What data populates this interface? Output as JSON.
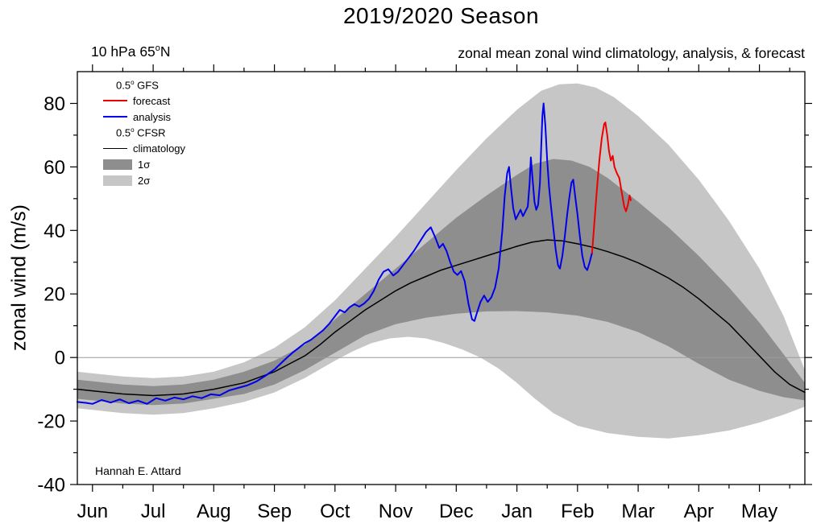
{
  "title": "2019/2020 Season",
  "header": {
    "left": {
      "pre": "10 hPa 65",
      "sup": "o",
      "post": "N"
    },
    "right": "zonal mean zonal wind climatology, analysis, & forecast"
  },
  "y_axis_label": "zonal wind (m/s)",
  "credit": "Hannah E. Attard",
  "legend": {
    "gfs": {
      "pre": "0.5",
      "sup": "o",
      "post": "  GFS"
    },
    "forecast_label": "forecast",
    "analysis_label": "analysis",
    "cfsr": {
      "pre": "0.5",
      "sup": "o",
      "post": " CFSR"
    },
    "climatology_label": "climatology",
    "sigma1_label": "1σ",
    "sigma2_label": "2σ"
  },
  "chart_data": {
    "type": "line",
    "title": "2019/2020 Season",
    "xlabel": "",
    "ylabel": "zonal wind (m/s)",
    "xlim": [
      -0.25,
      11.75
    ],
    "ylim": [
      -40,
      90
    ],
    "grid": false,
    "zero_line": true,
    "zero_line_color": "#9a9a9a",
    "x_ticks": {
      "positions": [
        0,
        1,
        2,
        3,
        4,
        5,
        6,
        7,
        8,
        9,
        10,
        11
      ],
      "labels": [
        "Jun",
        "Jul",
        "Aug",
        "Sep",
        "Oct",
        "Nov",
        "Dec",
        "Jan",
        "Feb",
        "Mar",
        "Apr",
        "May"
      ]
    },
    "y_ticks": [
      -40,
      -20,
      0,
      20,
      40,
      60,
      80
    ],
    "series": [
      {
        "name": "sigma2_band",
        "kind": "band",
        "label": "2σ",
        "color": "#c6c6c6",
        "upper": [
          [
            -0.25,
            -4.5
          ],
          [
            0,
            -5
          ],
          [
            0.5,
            -6
          ],
          [
            1,
            -6.5
          ],
          [
            1.5,
            -6
          ],
          [
            2,
            -4.5
          ],
          [
            2.5,
            -1.5
          ],
          [
            3,
            3
          ],
          [
            3.5,
            9.5
          ],
          [
            4,
            18
          ],
          [
            4.5,
            28
          ],
          [
            5,
            38
          ],
          [
            5.5,
            48.5
          ],
          [
            6,
            59
          ],
          [
            6.5,
            69
          ],
          [
            7,
            78
          ],
          [
            7.4,
            84
          ],
          [
            7.7,
            86
          ],
          [
            8,
            86.3
          ],
          [
            8.3,
            85
          ],
          [
            8.6,
            82
          ],
          [
            9,
            76
          ],
          [
            9.5,
            67
          ],
          [
            10,
            56
          ],
          [
            10.5,
            43
          ],
          [
            11,
            28
          ],
          [
            11.4,
            13
          ],
          [
            11.75,
            -4
          ]
        ],
        "lower": [
          [
            -0.25,
            -16
          ],
          [
            0,
            -16.5
          ],
          [
            0.5,
            -17.5
          ],
          [
            1,
            -18
          ],
          [
            1.5,
            -17.5
          ],
          [
            2,
            -16
          ],
          [
            2.5,
            -14
          ],
          [
            3,
            -11
          ],
          [
            3.5,
            -6.5
          ],
          [
            4,
            -1
          ],
          [
            4.3,
            2
          ],
          [
            4.6,
            4.5
          ],
          [
            4.9,
            6
          ],
          [
            5.2,
            6.5
          ],
          [
            5.5,
            6
          ],
          [
            5.8,
            4.5
          ],
          [
            6.1,
            2.5
          ],
          [
            6.4,
            0
          ],
          [
            6.7,
            -3.5
          ],
          [
            7,
            -8
          ],
          [
            7.3,
            -13
          ],
          [
            7.6,
            -17.5
          ],
          [
            8,
            -21.5
          ],
          [
            8.5,
            -23.8
          ],
          [
            9,
            -25
          ],
          [
            9.5,
            -25.5
          ],
          [
            10,
            -24.5
          ],
          [
            10.5,
            -23
          ],
          [
            11,
            -20.5
          ],
          [
            11.4,
            -18
          ],
          [
            11.75,
            -15.5
          ]
        ]
      },
      {
        "name": "sigma1_band",
        "kind": "band",
        "label": "1σ",
        "color": "#8e8e8e",
        "upper": [
          [
            -0.25,
            -7
          ],
          [
            0,
            -7.5
          ],
          [
            0.5,
            -8.5
          ],
          [
            1,
            -9
          ],
          [
            1.5,
            -8.5
          ],
          [
            2,
            -7
          ],
          [
            2.5,
            -4.5
          ],
          [
            3,
            -1
          ],
          [
            3.5,
            4
          ],
          [
            4,
            12
          ],
          [
            4.5,
            20
          ],
          [
            5,
            28
          ],
          [
            5.5,
            36
          ],
          [
            6,
            44
          ],
          [
            6.5,
            51
          ],
          [
            7,
            57.5
          ],
          [
            7.3,
            61
          ],
          [
            7.6,
            62.5
          ],
          [
            7.9,
            62
          ],
          [
            8.2,
            60
          ],
          [
            8.5,
            56.5
          ],
          [
            9,
            49
          ],
          [
            9.5,
            41
          ],
          [
            10,
            32
          ],
          [
            10.5,
            22
          ],
          [
            11,
            11
          ],
          [
            11.4,
            1
          ],
          [
            11.75,
            -8
          ]
        ],
        "lower": [
          [
            -0.25,
            -13
          ],
          [
            0,
            -13.5
          ],
          [
            0.5,
            -14.5
          ],
          [
            1,
            -15
          ],
          [
            1.5,
            -14.5
          ],
          [
            2,
            -13
          ],
          [
            2.5,
            -11.5
          ],
          [
            3,
            -8.5
          ],
          [
            3.5,
            -4
          ],
          [
            4,
            1.5
          ],
          [
            4.5,
            7
          ],
          [
            5,
            10.5
          ],
          [
            5.5,
            12.5
          ],
          [
            6,
            13.8
          ],
          [
            6.5,
            14.5
          ],
          [
            7,
            14.6
          ],
          [
            7.5,
            14.2
          ],
          [
            8,
            13.2
          ],
          [
            8.5,
            11.2
          ],
          [
            9,
            8
          ],
          [
            9.5,
            3.5
          ],
          [
            10,
            -2
          ],
          [
            10.5,
            -7
          ],
          [
            11,
            -10.5
          ],
          [
            11.4,
            -12.5
          ],
          [
            11.75,
            -13.5
          ]
        ]
      },
      {
        "name": "climatology",
        "kind": "line",
        "label": "climatology",
        "color": "#000000",
        "width": 1.5,
        "points": [
          [
            -0.25,
            -10
          ],
          [
            0,
            -10.5
          ],
          [
            0.5,
            -11.5
          ],
          [
            1,
            -12
          ],
          [
            1.5,
            -11.5
          ],
          [
            2,
            -10
          ],
          [
            2.5,
            -8
          ],
          [
            3,
            -4.5
          ],
          [
            3.25,
            -2
          ],
          [
            3.5,
            0.5
          ],
          [
            3.75,
            4
          ],
          [
            4,
            8
          ],
          [
            4.25,
            11.5
          ],
          [
            4.5,
            15
          ],
          [
            4.75,
            18
          ],
          [
            5,
            21
          ],
          [
            5.25,
            23.5
          ],
          [
            5.5,
            25.5
          ],
          [
            5.75,
            27.5
          ],
          [
            6,
            29
          ],
          [
            6.25,
            30.5
          ],
          [
            6.5,
            32
          ],
          [
            6.75,
            33.5
          ],
          [
            7,
            35
          ],
          [
            7.25,
            36.3
          ],
          [
            7.5,
            37
          ],
          [
            7.75,
            36.7
          ],
          [
            8,
            35.8
          ],
          [
            8.25,
            34.7
          ],
          [
            8.5,
            33.3
          ],
          [
            8.75,
            31.7
          ],
          [
            9,
            29.8
          ],
          [
            9.25,
            27.5
          ],
          [
            9.5,
            25
          ],
          [
            9.75,
            22
          ],
          [
            10,
            18.5
          ],
          [
            10.25,
            14.5
          ],
          [
            10.5,
            10.5
          ],
          [
            10.75,
            5.5
          ],
          [
            11,
            0.5
          ],
          [
            11.25,
            -4.5
          ],
          [
            11.5,
            -8.5
          ],
          [
            11.75,
            -11
          ]
        ]
      },
      {
        "name": "analysis",
        "kind": "line",
        "label": "analysis",
        "color": "#0000ee",
        "width": 2,
        "points": [
          [
            -0.25,
            -14
          ],
          [
            -0.1,
            -14.3
          ],
          [
            0,
            -14.6
          ],
          [
            0.15,
            -13.4
          ],
          [
            0.3,
            -14.2
          ],
          [
            0.45,
            -13.2
          ],
          [
            0.6,
            -14.4
          ],
          [
            0.75,
            -13.6
          ],
          [
            0.9,
            -14.6
          ],
          [
            1.05,
            -12.8
          ],
          [
            1.2,
            -13.6
          ],
          [
            1.35,
            -12.6
          ],
          [
            1.5,
            -13.2
          ],
          [
            1.65,
            -12.2
          ],
          [
            1.8,
            -12.8
          ],
          [
            1.95,
            -11.6
          ],
          [
            2.1,
            -11.9
          ],
          [
            2.25,
            -10.4
          ],
          [
            2.4,
            -9.6
          ],
          [
            2.55,
            -8.8
          ],
          [
            2.7,
            -7.6
          ],
          [
            2.85,
            -5.8
          ],
          [
            3,
            -3.8
          ],
          [
            3.1,
            -2
          ],
          [
            3.2,
            -0.2
          ],
          [
            3.3,
            1.5
          ],
          [
            3.4,
            3
          ],
          [
            3.5,
            4.5
          ],
          [
            3.6,
            5.5
          ],
          [
            3.7,
            7
          ],
          [
            3.8,
            8.5
          ],
          [
            3.9,
            10.5
          ],
          [
            4,
            13
          ],
          [
            4.08,
            15
          ],
          [
            4.16,
            14.2
          ],
          [
            4.24,
            15.8
          ],
          [
            4.32,
            16.8
          ],
          [
            4.4,
            16
          ],
          [
            4.48,
            17
          ],
          [
            4.56,
            18.5
          ],
          [
            4.64,
            21
          ],
          [
            4.72,
            24.5
          ],
          [
            4.8,
            27
          ],
          [
            4.88,
            27.8
          ],
          [
            4.96,
            25.8
          ],
          [
            5.04,
            27
          ],
          [
            5.12,
            29
          ],
          [
            5.2,
            31
          ],
          [
            5.3,
            33.5
          ],
          [
            5.4,
            36.5
          ],
          [
            5.5,
            39.5
          ],
          [
            5.58,
            41
          ],
          [
            5.66,
            37.5
          ],
          [
            5.72,
            34.5
          ],
          [
            5.78,
            35.8
          ],
          [
            5.84,
            33.5
          ],
          [
            5.9,
            30
          ],
          [
            5.96,
            27
          ],
          [
            6.02,
            26
          ],
          [
            6.08,
            27.2
          ],
          [
            6.14,
            24
          ],
          [
            6.2,
            17
          ],
          [
            6.26,
            12
          ],
          [
            6.3,
            11.5
          ],
          [
            6.34,
            14
          ],
          [
            6.4,
            17.5
          ],
          [
            6.46,
            19.5
          ],
          [
            6.52,
            17.5
          ],
          [
            6.58,
            19
          ],
          [
            6.64,
            22
          ],
          [
            6.7,
            28
          ],
          [
            6.76,
            40
          ],
          [
            6.8,
            51
          ],
          [
            6.84,
            58
          ],
          [
            6.87,
            60
          ],
          [
            6.9,
            54
          ],
          [
            6.94,
            47
          ],
          [
            6.98,
            43.5
          ],
          [
            7.02,
            45
          ],
          [
            7.06,
            46.5
          ],
          [
            7.1,
            44.5
          ],
          [
            7.14,
            46
          ],
          [
            7.18,
            47.5
          ],
          [
            7.21,
            55
          ],
          [
            7.23,
            63
          ],
          [
            7.26,
            56
          ],
          [
            7.29,
            49
          ],
          [
            7.32,
            46.5
          ],
          [
            7.35,
            48
          ],
          [
            7.38,
            55
          ],
          [
            7.4,
            66
          ],
          [
            7.42,
            76
          ],
          [
            7.44,
            80
          ],
          [
            7.47,
            73
          ],
          [
            7.5,
            62
          ],
          [
            7.53,
            54
          ],
          [
            7.56,
            48
          ],
          [
            7.6,
            41
          ],
          [
            7.64,
            34
          ],
          [
            7.68,
            29
          ],
          [
            7.71,
            28
          ],
          [
            7.75,
            32
          ],
          [
            7.79,
            38
          ],
          [
            7.83,
            45
          ],
          [
            7.87,
            51
          ],
          [
            7.9,
            55
          ],
          [
            7.93,
            56
          ],
          [
            7.96,
            51
          ],
          [
            8,
            45
          ],
          [
            8.04,
            38
          ],
          [
            8.08,
            32
          ],
          [
            8.12,
            28.5
          ],
          [
            8.16,
            27.5
          ],
          [
            8.2,
            30
          ],
          [
            8.24,
            33
          ]
        ]
      },
      {
        "name": "forecast",
        "kind": "line",
        "label": "forecast",
        "color": "#ee0000",
        "width": 2,
        "points": [
          [
            8.24,
            33
          ],
          [
            8.28,
            43
          ],
          [
            8.32,
            53
          ],
          [
            8.36,
            62
          ],
          [
            8.4,
            69
          ],
          [
            8.44,
            73.5
          ],
          [
            8.46,
            74
          ],
          [
            8.49,
            70
          ],
          [
            8.52,
            65
          ],
          [
            8.55,
            62
          ],
          [
            8.58,
            63.5
          ],
          [
            8.61,
            60
          ],
          [
            8.65,
            58
          ],
          [
            8.69,
            56.5
          ],
          [
            8.73,
            52
          ],
          [
            8.77,
            47.5
          ],
          [
            8.8,
            46
          ],
          [
            8.83,
            48
          ],
          [
            8.86,
            51
          ],
          [
            8.88,
            49.5
          ]
        ]
      }
    ]
  }
}
